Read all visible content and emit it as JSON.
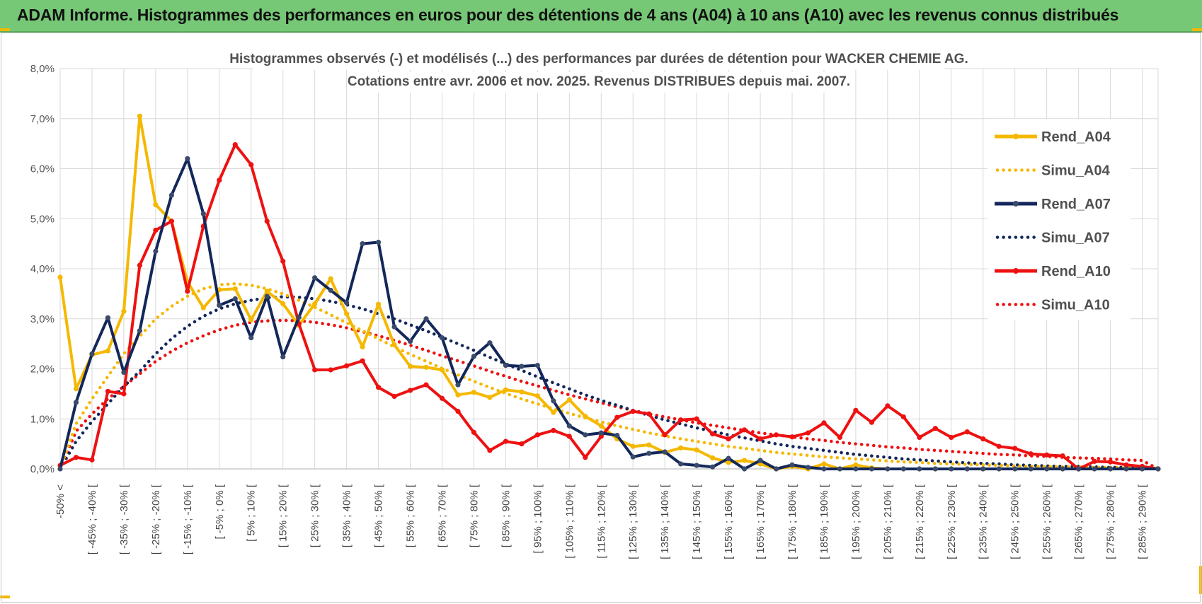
{
  "header": {
    "title": "ADAM Informe. Histogrammes des performances en euros pour des détentions de 4 ans (A04) à 10 ans (A10) avec les revenus connus distribués"
  },
  "colors": {
    "banner": "#76c776",
    "corner_accent": "#f2b705",
    "A04": "#f5b800",
    "A07": "#13275a",
    "A10": "#ee1111",
    "grid": "#d9d9d9"
  },
  "chart_data": {
    "type": "line",
    "title": "Histogrammes observés (-) et modélisés (...) des performances par durées de détention pour WACKER CHEMIE AG.",
    "subtitle": "Cotations entre avr. 2006 et nov. 2025. Revenus DISTRIBUES depuis mai. 2007.",
    "xlabel": "",
    "ylabel": "",
    "ylim": [
      0,
      8
    ],
    "y_unit": "%",
    "y_ticks": [
      "0,0%",
      "1,0%",
      "2,0%",
      "3,0%",
      "4,0%",
      "5,0%",
      "6,0%",
      "7,0%",
      "8,0%"
    ],
    "grid": true,
    "legend_position": "right",
    "x_tick_labels": [
      "-50% <",
      "[ -45% ; -40% [",
      "[ -35% ; -30% [",
      "[ -25% ; -20% [",
      "[ -15% ; -10% [",
      "[ -5% ; 0% [",
      "[ 5% ; 10% [",
      "[ 15% ; 20% [",
      "[ 25% ; 30% [",
      "[ 35% ; 40% [",
      "[ 45% ; 50% [",
      "[ 55% ; 60% [",
      "[ 65% ; 70% [",
      "[ 75% ; 80% [",
      "[ 85% ; 90% [",
      "[ 95% ; 100% [",
      "[ 105% ; 110% [",
      "[ 115% ; 120% [",
      "[ 125% ; 130% [",
      "[ 135% ; 140% [",
      "[ 145% ; 150% [",
      "[ 155% ; 160% [",
      "[ 165% ; 170% [",
      "[ 175% ; 180% [",
      "[ 185% ; 190% [",
      "[ 195% ; 200% [",
      "[ 205% ; 210% [",
      "[ 215% ; 220% [",
      "[ 225% ; 230% [",
      "[ 235% ; 240% [",
      "[ 245% ; 250% [",
      "[ 255% ; 260% [",
      "[ 265% ; 270% [",
      "[ 275% ; 280% [",
      "[ 285% ; 290% ["
    ],
    "series": [
      {
        "name": "Rend_A04",
        "style": "solid",
        "color": "#f5b800",
        "values": [
          3.83,
          1.6,
          2.28,
          2.36,
          3.15,
          7.05,
          5.28,
          4.95,
          3.74,
          3.22,
          3.58,
          3.6,
          2.98,
          3.55,
          3.3,
          2.87,
          3.3,
          3.8,
          3.1,
          2.44,
          3.29,
          2.48,
          2.05,
          2.03,
          1.98,
          1.48,
          1.53,
          1.43,
          1.58,
          1.54,
          1.46,
          1.13,
          1.38,
          1.05,
          0.86,
          0.6,
          0.45,
          0.48,
          0.33,
          0.42,
          0.38,
          0.22,
          0.13,
          0.17,
          0.1,
          0.0,
          0.05,
          0.0,
          0.1,
          0.0,
          0.08,
          0.02,
          0.0,
          0.0,
          0.0,
          0.0,
          0.0,
          0.0,
          0.0,
          0.0,
          0.0,
          0.0,
          0.0,
          0.0,
          0.0,
          0.0,
          0.0,
          0.0,
          0.0,
          0.0
        ]
      },
      {
        "name": "Simu_A04",
        "style": "dotted",
        "color": "#f5b800",
        "values": [
          0.0,
          0.9,
          1.4,
          1.85,
          2.3,
          2.65,
          3.0,
          3.25,
          3.45,
          3.6,
          3.68,
          3.7,
          3.67,
          3.6,
          3.5,
          3.37,
          3.23,
          3.08,
          2.92,
          2.76,
          2.6,
          2.44,
          2.29,
          2.15,
          2.01,
          1.88,
          1.75,
          1.63,
          1.51,
          1.4,
          1.3,
          1.2,
          1.11,
          1.02,
          0.94,
          0.86,
          0.79,
          0.72,
          0.66,
          0.6,
          0.55,
          0.5,
          0.45,
          0.41,
          0.37,
          0.33,
          0.3,
          0.27,
          0.24,
          0.22,
          0.2,
          0.18,
          0.16,
          0.14,
          0.13,
          0.11,
          0.1,
          0.09,
          0.08,
          0.07,
          0.06,
          0.05,
          0.05,
          0.04,
          0.04,
          0.03,
          0.03,
          0.02,
          0.02,
          0.02
        ]
      },
      {
        "name": "Rend_A07",
        "style": "solid",
        "color": "#13275a",
        "values": [
          0.0,
          1.33,
          2.3,
          3.02,
          1.93,
          2.76,
          4.35,
          5.47,
          6.2,
          5.1,
          3.27,
          3.4,
          2.62,
          3.45,
          2.24,
          3.03,
          3.82,
          3.57,
          3.32,
          4.5,
          4.53,
          2.84,
          2.55,
          3.0,
          2.62,
          1.68,
          2.25,
          2.52,
          2.07,
          2.05,
          2.07,
          1.36,
          0.86,
          0.68,
          0.72,
          0.67,
          0.24,
          0.31,
          0.34,
          0.1,
          0.07,
          0.04,
          0.21,
          0.0,
          0.17,
          0.0,
          0.08,
          0.03,
          0.0,
          0.0,
          0.0,
          0.0,
          0.0,
          0.0,
          0.0,
          0.0,
          0.0,
          0.0,
          0.0,
          0.0,
          0.0,
          0.0,
          0.0,
          0.0,
          0.0,
          0.0,
          0.0,
          0.0,
          0.0,
          0.0
        ]
      },
      {
        "name": "Simu_A07",
        "style": "dotted",
        "color": "#13275a",
        "values": [
          0.0,
          0.55,
          0.95,
          1.3,
          1.65,
          1.95,
          2.3,
          2.6,
          2.85,
          3.05,
          3.2,
          3.3,
          3.37,
          3.42,
          3.44,
          3.43,
          3.4,
          3.35,
          3.28,
          3.2,
          3.1,
          3.0,
          2.88,
          2.76,
          2.63,
          2.5,
          2.37,
          2.23,
          2.1,
          1.97,
          1.84,
          1.72,
          1.6,
          1.48,
          1.37,
          1.27,
          1.17,
          1.07,
          0.98,
          0.9,
          0.82,
          0.75,
          0.68,
          0.62,
          0.56,
          0.5,
          0.45,
          0.41,
          0.37,
          0.33,
          0.29,
          0.26,
          0.23,
          0.2,
          0.18,
          0.16,
          0.14,
          0.12,
          0.11,
          0.1,
          0.08,
          0.07,
          0.06,
          0.05,
          0.05,
          0.04,
          0.03,
          0.03,
          0.02,
          0.02
        ]
      },
      {
        "name": "Rend_A10",
        "style": "solid",
        "color": "#ee1111",
        "values": [
          0.07,
          0.23,
          0.18,
          1.55,
          1.5,
          4.07,
          4.77,
          4.95,
          3.55,
          4.85,
          5.77,
          6.48,
          6.08,
          4.95,
          4.15,
          2.9,
          1.98,
          1.98,
          2.06,
          2.16,
          1.63,
          1.45,
          1.57,
          1.68,
          1.41,
          1.15,
          0.73,
          0.37,
          0.55,
          0.5,
          0.68,
          0.77,
          0.65,
          0.23,
          0.65,
          1.03,
          1.15,
          1.1,
          0.68,
          0.98,
          1.0,
          0.7,
          0.6,
          0.78,
          0.6,
          0.68,
          0.64,
          0.72,
          0.92,
          0.63,
          1.17,
          0.93,
          1.26,
          1.04,
          0.63,
          0.81,
          0.63,
          0.74,
          0.6,
          0.45,
          0.41,
          0.3,
          0.28,
          0.26,
          0.0,
          0.15,
          0.14,
          0.08,
          0.05,
          0.0
        ]
      },
      {
        "name": "Simu_A10",
        "style": "dotted",
        "color": "#ee1111",
        "values": [
          0.0,
          0.75,
          1.1,
          1.4,
          1.65,
          1.9,
          2.15,
          2.35,
          2.52,
          2.66,
          2.78,
          2.87,
          2.93,
          2.96,
          2.97,
          2.96,
          2.93,
          2.88,
          2.82,
          2.74,
          2.66,
          2.57,
          2.47,
          2.37,
          2.26,
          2.16,
          2.06,
          1.95,
          1.85,
          1.75,
          1.66,
          1.57,
          1.48,
          1.4,
          1.32,
          1.24,
          1.17,
          1.1,
          1.04,
          0.98,
          0.92,
          0.87,
          0.82,
          0.77,
          0.72,
          0.68,
          0.64,
          0.6,
          0.57,
          0.53,
          0.5,
          0.47,
          0.44,
          0.42,
          0.39,
          0.37,
          0.35,
          0.33,
          0.31,
          0.29,
          0.28,
          0.26,
          0.25,
          0.23,
          0.22,
          0.21,
          0.2,
          0.18,
          0.17,
          0.0
        ]
      }
    ]
  }
}
